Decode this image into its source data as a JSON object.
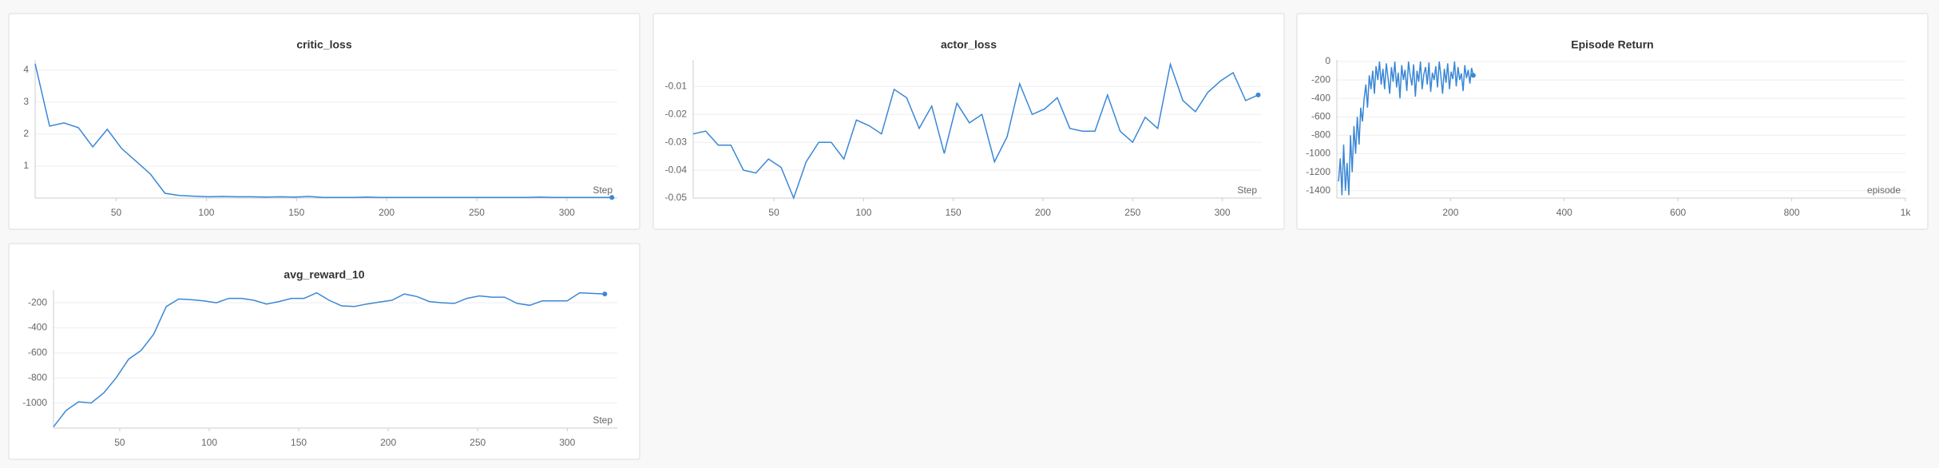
{
  "chart_data": [
    {
      "type": "line",
      "title": "critic_loss",
      "x_label": "Step",
      "color": "#3a87d6",
      "x": [
        5,
        13,
        21,
        29,
        37,
        45,
        53,
        61,
        69,
        77,
        85,
        93,
        101,
        109,
        117,
        125,
        133,
        141,
        149,
        157,
        165,
        173,
        181,
        189,
        197,
        205,
        213,
        221,
        229,
        237,
        245,
        253,
        261,
        269,
        277,
        285,
        293,
        301,
        309,
        317,
        325
      ],
      "values": [
        4.2,
        2.25,
        2.35,
        2.2,
        1.6,
        2.15,
        1.55,
        1.15,
        0.75,
        0.15,
        0.08,
        0.06,
        0.04,
        0.05,
        0.04,
        0.04,
        0.03,
        0.04,
        0.03,
        0.05,
        0.02,
        0.02,
        0.02,
        0.03,
        0.02,
        0.02,
        0.02,
        0.02,
        0.02,
        0.02,
        0.02,
        0.02,
        0.02,
        0.02,
        0.02,
        0.03,
        0.02,
        0.02,
        0.02,
        0.02,
        0.02
      ],
      "xlim": [
        5,
        328
      ],
      "ylim": [
        0,
        4.27
      ],
      "xticks": [
        50,
        100,
        150,
        200,
        250,
        300
      ],
      "yticks": [
        1,
        2,
        3,
        4
      ],
      "grid": true
    },
    {
      "type": "line",
      "title": "actor_loss",
      "x_label": "Step",
      "color": "#3a87d6",
      "x": [
        5,
        12,
        19,
        26,
        33,
        40,
        47,
        54,
        61,
        68,
        75,
        82,
        89,
        96,
        103,
        110,
        117,
        124,
        131,
        138,
        145,
        152,
        159,
        166,
        173,
        180,
        187,
        194,
        201,
        208,
        215,
        222,
        229,
        236,
        243,
        250,
        257,
        264,
        271,
        278,
        285,
        292,
        299,
        306,
        313,
        320
      ],
      "values": [
        -0.027,
        -0.026,
        -0.031,
        -0.031,
        -0.04,
        -0.041,
        -0.036,
        -0.039,
        -0.05,
        -0.037,
        -0.03,
        -0.03,
        -0.036,
        -0.022,
        -0.024,
        -0.027,
        -0.011,
        -0.014,
        -0.025,
        -0.017,
        -0.034,
        -0.016,
        -0.023,
        -0.02,
        -0.037,
        -0.028,
        -0.009,
        -0.02,
        -0.018,
        -0.014,
        -0.025,
        -0.026,
        -0.026,
        -0.013,
        -0.026,
        -0.03,
        -0.021,
        -0.025,
        -0.002,
        -0.015,
        -0.019,
        -0.012,
        -0.008,
        -0.005,
        -0.015,
        -0.013
      ],
      "xlim": [
        5,
        322
      ],
      "ylim": [
        -0.05,
        -0.001
      ],
      "xticks": [
        50,
        100,
        150,
        200,
        250,
        300
      ],
      "yticks": [
        -0.05,
        -0.04,
        -0.03,
        -0.02,
        -0.01
      ],
      "grid": true
    },
    {
      "type": "line",
      "title": "Episode Return",
      "x_label": "episode",
      "color": "#3a87d6",
      "x": [
        3,
        6,
        9,
        12,
        15,
        18,
        21,
        24,
        27,
        30,
        33,
        36,
        39,
        42,
        45,
        48,
        51,
        54,
        57,
        60,
        63,
        66,
        69,
        72,
        75,
        78,
        81,
        84,
        87,
        90,
        93,
        96,
        99,
        102,
        105,
        108,
        111,
        114,
        117,
        120,
        123,
        126,
        129,
        132,
        135,
        138,
        141,
        144,
        147,
        150,
        153,
        156,
        159,
        162,
        165,
        168,
        171,
        174,
        177,
        180,
        183,
        186,
        189,
        192,
        195,
        198,
        201,
        204,
        207,
        210,
        213,
        216,
        219,
        222,
        225,
        228,
        231,
        234,
        237,
        240
      ],
      "values": [
        -1300,
        -1050,
        -1450,
        -900,
        -1400,
        -1100,
        -1450,
        -800,
        -1200,
        -700,
        -1000,
        -600,
        -900,
        -500,
        -650,
        -400,
        -250,
        -500,
        -150,
        -300,
        -100,
        -350,
        -50,
        -200,
        0,
        -250,
        -80,
        -300,
        -20,
        -180,
        -350,
        -60,
        -220,
        0,
        -280,
        -120,
        -400,
        -40,
        -200,
        -90,
        -320,
        0,
        -150,
        -260,
        -30,
        -380,
        -100,
        -220,
        0,
        -300,
        -140,
        -60,
        -250,
        -10,
        -330,
        -120,
        -200,
        -50,
        -280,
        0,
        -160,
        -350,
        -80,
        -230,
        -20,
        -300,
        -110,
        -190,
        0,
        -270,
        -60,
        -200,
        -130,
        -320,
        -40,
        -180,
        -90,
        -240,
        -70,
        -150
      ],
      "xlim": [
        0,
        1000
      ],
      "ylim": [
        -1480,
        0
      ],
      "xticks": [
        200,
        400,
        600,
        800,
        {
          "value": 1000,
          "label": "1k"
        }
      ],
      "yticks": [
        0,
        -200,
        -400,
        -600,
        -800,
        -1000,
        -1200,
        -1400
      ],
      "grid": true
    },
    {
      "type": "line",
      "title": "avg_reward_10",
      "x_label": "Step",
      "color": "#3a87d6",
      "x": [
        13,
        20,
        27,
        34,
        41,
        48,
        55,
        62,
        69,
        76,
        83,
        90,
        97,
        104,
        111,
        118,
        125,
        132,
        139,
        146,
        153,
        160,
        167,
        174,
        181,
        188,
        195,
        202,
        209,
        216,
        223,
        230,
        237,
        244,
        251,
        258,
        265,
        272,
        279,
        286,
        293,
        300,
        307,
        314,
        321
      ],
      "values": [
        -1190,
        -1060,
        -990,
        -1000,
        -920,
        -800,
        -650,
        -580,
        -450,
        -230,
        -170,
        -175,
        -185,
        -200,
        -165,
        -165,
        -180,
        -210,
        -190,
        -165,
        -165,
        -120,
        -180,
        -225,
        -230,
        -210,
        -195,
        -180,
        -130,
        -150,
        -190,
        -200,
        -205,
        -165,
        -145,
        -155,
        -155,
        -205,
        -220,
        -185,
        -185,
        -185,
        -120,
        -125,
        -130
      ],
      "xlim": [
        13,
        328
      ],
      "ylim": [
        -1200,
        -110
      ],
      "xticks": [
        50,
        100,
        150,
        200,
        250,
        300
      ],
      "yticks": [
        -200,
        -400,
        -600,
        -800,
        -1000
      ],
      "grid": true
    }
  ]
}
